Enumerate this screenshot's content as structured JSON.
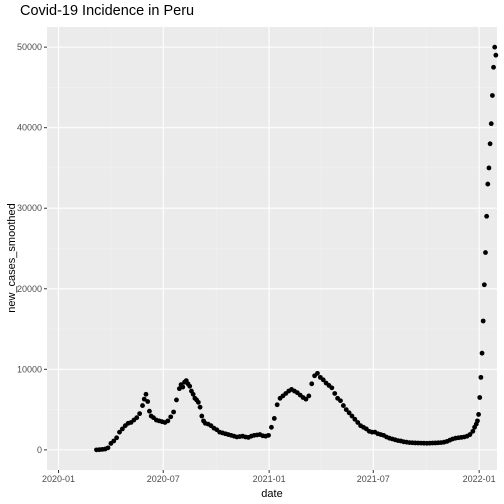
{
  "chart_data": {
    "type": "scatter",
    "title": "Covid-19 Incidence in Peru",
    "xlabel": "date",
    "ylabel": "new_cases_smoothed",
    "x_tick_labels": [
      "2020-01",
      "2020-07",
      "2021-01",
      "2021-07",
      "2022-01"
    ],
    "x_tick_dates": [
      "2020-01-01",
      "2020-07-01",
      "2021-01-01",
      "2021-07-01",
      "2022-01-01"
    ],
    "y_tick_labels": [
      "0",
      "10000",
      "20000",
      "30000",
      "40000",
      "50000"
    ],
    "y_tick_values": [
      0,
      10000,
      20000,
      30000,
      40000,
      50000
    ],
    "x_range": [
      "2019-12-12",
      "2022-02-01"
    ],
    "y_range": [
      -2500,
      52500
    ],
    "grid": true,
    "colors": {
      "panel": "#ebebeb",
      "grid_major": "#ffffff",
      "point": "#000000"
    },
    "x": [
      "2020-03-07",
      "2020-03-12",
      "2020-03-17",
      "2020-03-22",
      "2020-03-27",
      "2020-04-01",
      "2020-04-06",
      "2020-04-11",
      "2020-04-16",
      "2020-04-21",
      "2020-04-26",
      "2020-05-01",
      "2020-05-06",
      "2020-05-11",
      "2020-05-16",
      "2020-05-21",
      "2020-05-26",
      "2020-05-29",
      "2020-06-01",
      "2020-06-04",
      "2020-06-07",
      "2020-06-10",
      "2020-06-14",
      "2020-06-19",
      "2020-06-24",
      "2020-06-29",
      "2020-07-04",
      "2020-07-09",
      "2020-07-14",
      "2020-07-19",
      "2020-07-24",
      "2020-07-29",
      "2020-08-01",
      "2020-08-04",
      "2020-08-07",
      "2020-08-10",
      "2020-08-13",
      "2020-08-16",
      "2020-08-19",
      "2020-08-22",
      "2020-08-25",
      "2020-08-28",
      "2020-08-31",
      "2020-09-03",
      "2020-09-06",
      "2020-09-09",
      "2020-09-12",
      "2020-09-17",
      "2020-09-22",
      "2020-09-27",
      "2020-10-02",
      "2020-10-07",
      "2020-10-12",
      "2020-10-17",
      "2020-10-22",
      "2020-10-27",
      "2020-11-01",
      "2020-11-06",
      "2020-11-11",
      "2020-11-16",
      "2020-11-21",
      "2020-11-26",
      "2020-12-01",
      "2020-12-06",
      "2020-12-11",
      "2020-12-16",
      "2020-12-21",
      "2020-12-26",
      "2020-12-31",
      "2021-01-05",
      "2021-01-10",
      "2021-01-15",
      "2021-01-20",
      "2021-01-25",
      "2021-01-30",
      "2021-02-04",
      "2021-02-09",
      "2021-02-14",
      "2021-02-19",
      "2021-02-24",
      "2021-03-01",
      "2021-03-06",
      "2021-03-11",
      "2021-03-16",
      "2021-03-21",
      "2021-03-26",
      "2021-03-31",
      "2021-04-05",
      "2021-04-10",
      "2021-04-15",
      "2021-04-20",
      "2021-04-25",
      "2021-04-30",
      "2021-05-05",
      "2021-05-10",
      "2021-05-15",
      "2021-05-20",
      "2021-05-25",
      "2021-05-30",
      "2021-06-04",
      "2021-06-09",
      "2021-06-14",
      "2021-06-19",
      "2021-06-24",
      "2021-06-29",
      "2021-07-04",
      "2021-07-09",
      "2021-07-14",
      "2021-07-19",
      "2021-07-24",
      "2021-07-29",
      "2021-08-03",
      "2021-08-08",
      "2021-08-13",
      "2021-08-18",
      "2021-08-23",
      "2021-08-28",
      "2021-09-02",
      "2021-09-07",
      "2021-09-12",
      "2021-09-17",
      "2021-09-22",
      "2021-09-27",
      "2021-10-02",
      "2021-10-07",
      "2021-10-12",
      "2021-10-17",
      "2021-10-22",
      "2021-10-27",
      "2021-11-01",
      "2021-11-06",
      "2021-11-11",
      "2021-11-16",
      "2021-11-21",
      "2021-11-26",
      "2021-12-01",
      "2021-12-06",
      "2021-12-11",
      "2021-12-16",
      "2021-12-21",
      "2021-12-24",
      "2021-12-27",
      "2021-12-29",
      "2021-12-31",
      "2022-01-02",
      "2022-01-04",
      "2022-01-06",
      "2022-01-08",
      "2022-01-10",
      "2022-01-12",
      "2022-01-14",
      "2022-01-16",
      "2022-01-18",
      "2022-01-20",
      "2022-01-22",
      "2022-01-24",
      "2022-01-26",
      "2022-01-28",
      "2022-01-30"
    ],
    "y": [
      0,
      20,
      60,
      100,
      250,
      800,
      1100,
      1500,
      2200,
      2600,
      3000,
      3300,
      3400,
      3700,
      4000,
      4500,
      5500,
      6300,
      6900,
      6000,
      4800,
      4200,
      4000,
      3700,
      3600,
      3500,
      3400,
      3600,
      4100,
      4700,
      6200,
      7600,
      8100,
      7800,
      8400,
      8600,
      8200,
      7900,
      7300,
      6900,
      6400,
      6200,
      5900,
      5300,
      4200,
      3600,
      3300,
      3200,
      3000,
      2700,
      2500,
      2200,
      2100,
      2000,
      1900,
      1800,
      1700,
      1600,
      1650,
      1700,
      1600,
      1550,
      1700,
      1800,
      1850,
      1900,
      1750,
      1700,
      1800,
      2800,
      3900,
      5600,
      6400,
      6700,
      7000,
      7300,
      7500,
      7300,
      7100,
      6800,
      6500,
      6300,
      6700,
      8200,
      9200,
      9500,
      9000,
      8700,
      8300,
      8000,
      7700,
      7000,
      6400,
      6100,
      5500,
      5000,
      4600,
      4200,
      3800,
      3400,
      3000,
      2800,
      2600,
      2300,
      2200,
      2200,
      2000,
      1900,
      1800,
      1600,
      1450,
      1350,
      1250,
      1150,
      1100,
      1000,
      950,
      900,
      880,
      860,
      850,
      840,
      830,
      820,
      830,
      850,
      860,
      880,
      900,
      950,
      1050,
      1200,
      1350,
      1450,
      1500,
      1550,
      1600,
      1700,
      1900,
      2300,
      2800,
      3200,
      3600,
      4400,
      6500,
      9000,
      12000,
      16000,
      20500,
      24500,
      29000,
      33000,
      35000,
      38000,
      40500,
      44000,
      47500,
      50000,
      49000
    ]
  }
}
